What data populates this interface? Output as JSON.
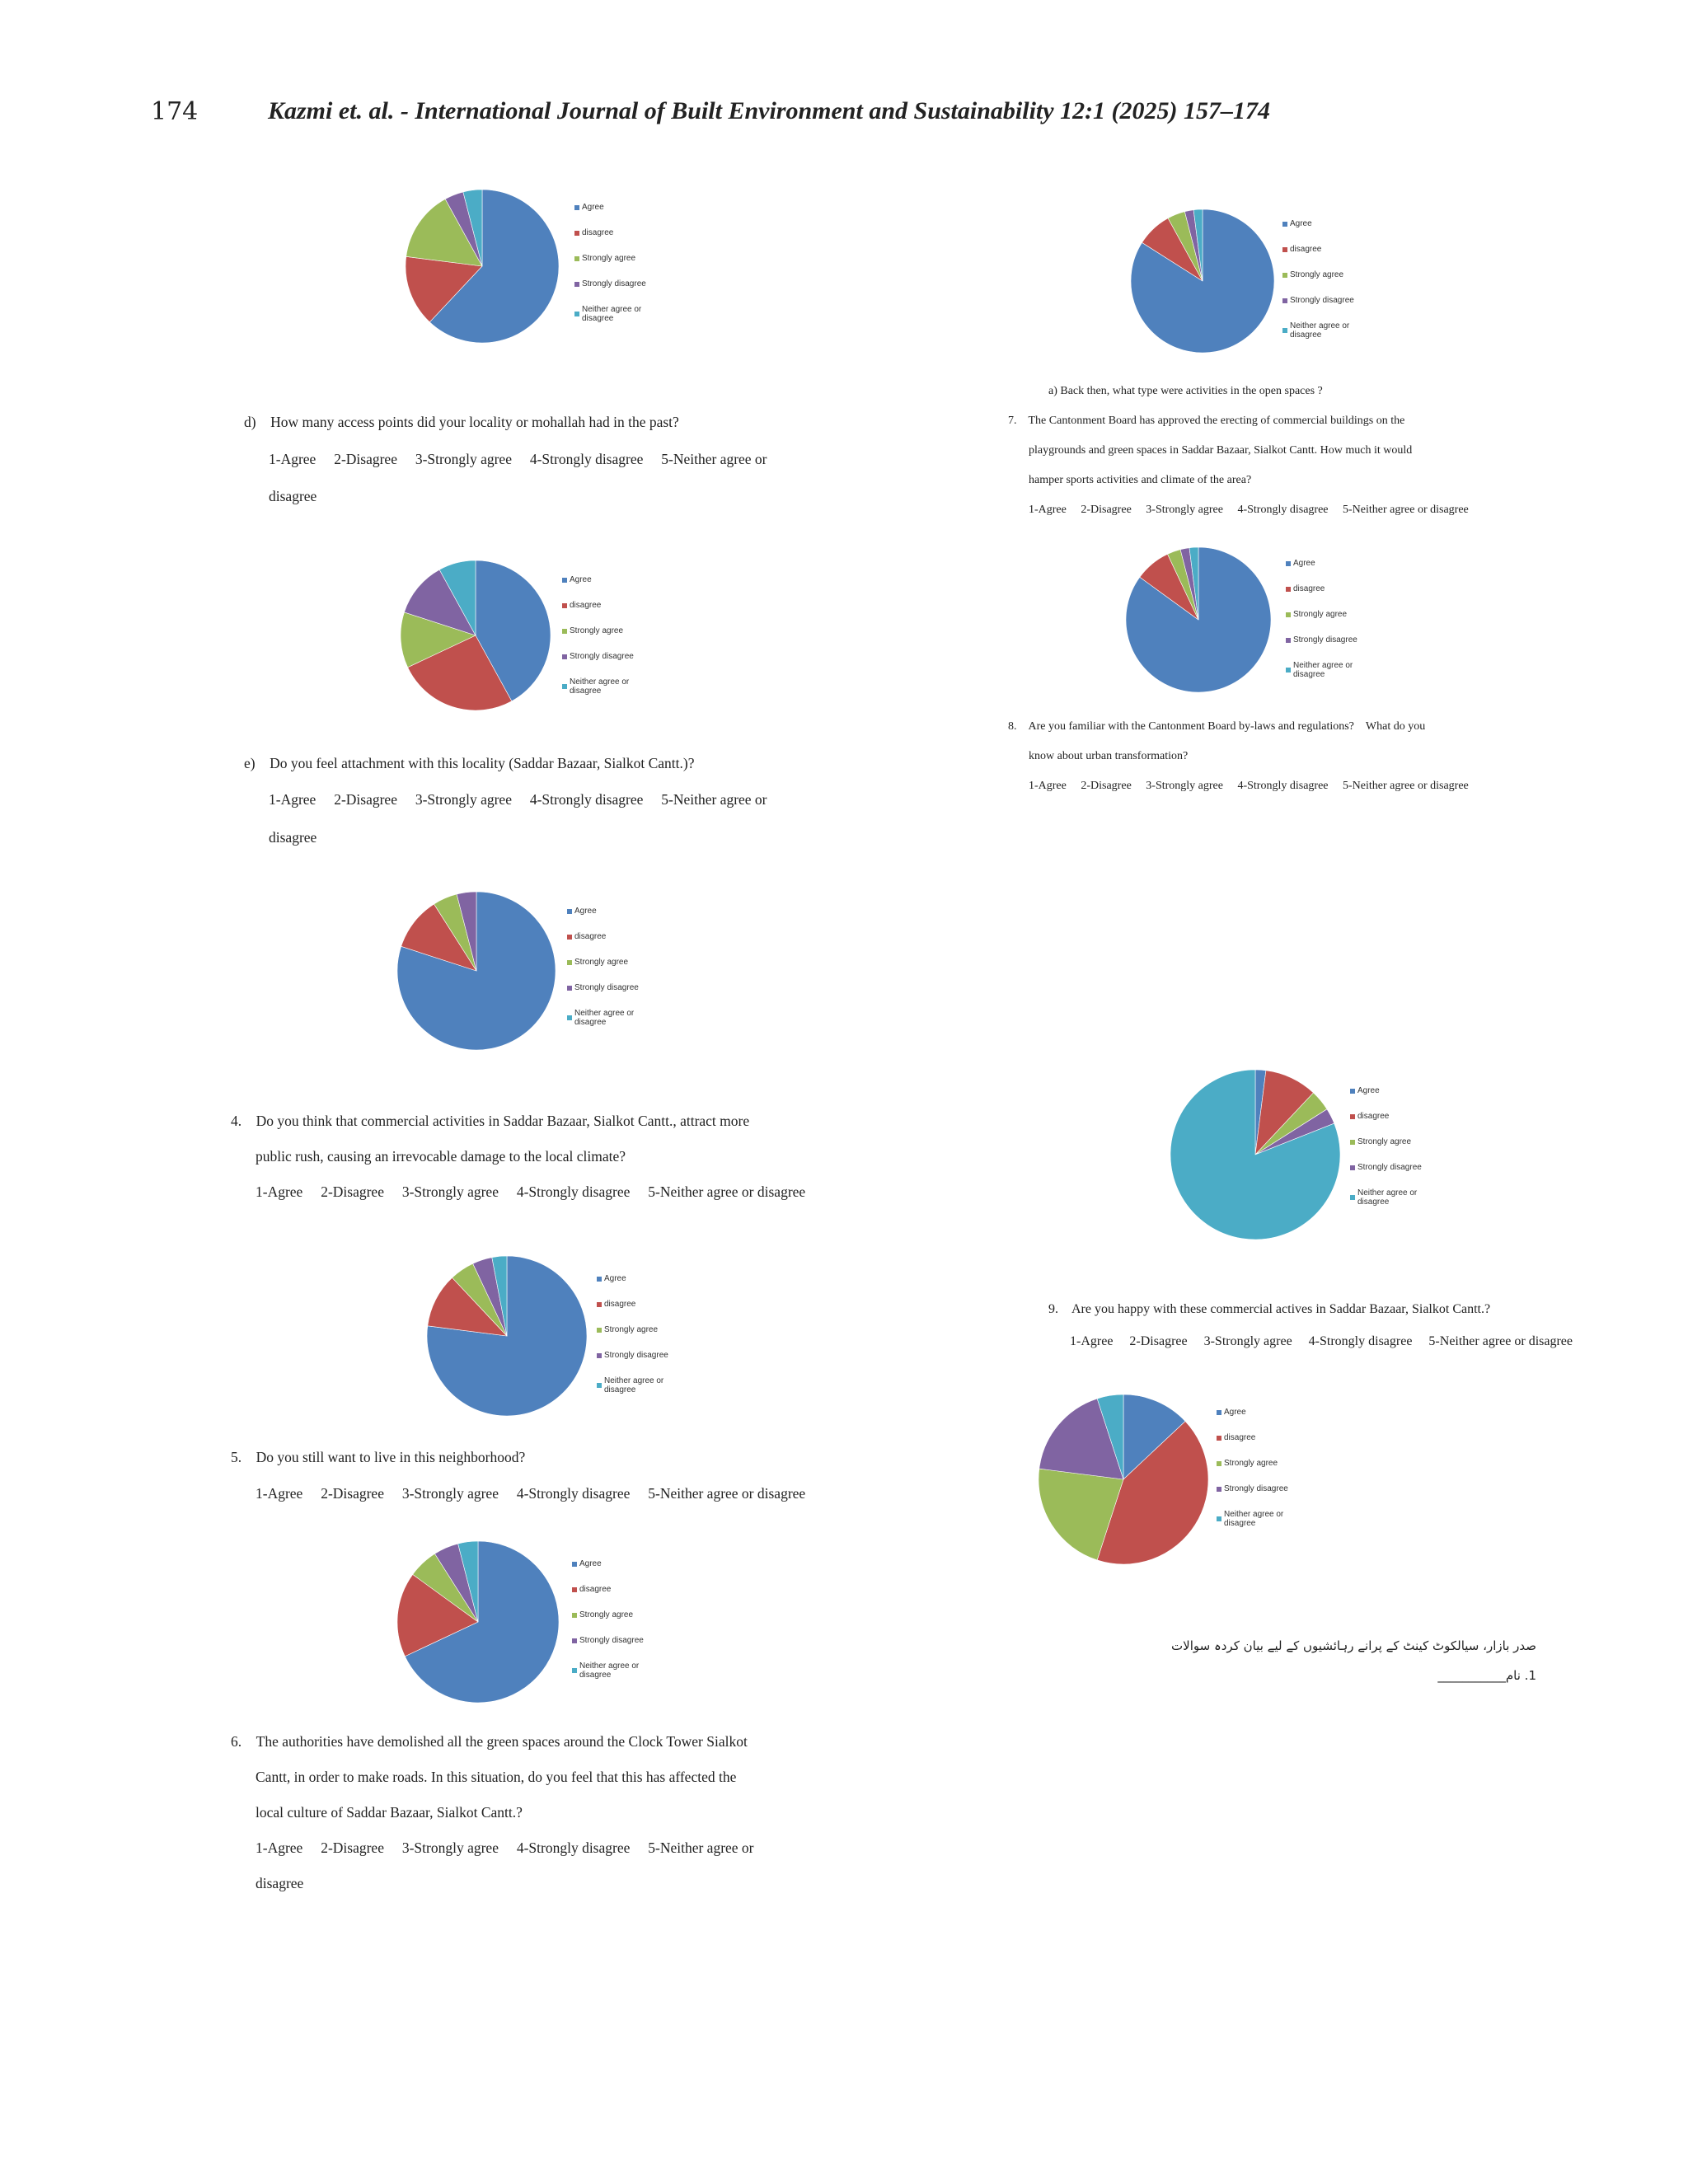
{
  "header": {
    "page_number": "174",
    "running_head": "Kazmi et. al. - International Journal of Built Environment and Sustainability 12:1 (2025) 157–174"
  },
  "colors": [
    "#4f81bd",
    "#c0504d",
    "#9bbb59",
    "#8064a2",
    "#4bacc6"
  ],
  "legend_labels": [
    "Agree",
    "disagree",
    "Strongly agree",
    "Strongly disagree",
    "Neither agree or disagree"
  ],
  "questions": {
    "d": {
      "text": "d) How many access points did your locality or mohallah had in the past?",
      "opt1": "1-Agree  2-Disagree  3-Strongly agree  4-Strongly disagree  5-Neither agree or",
      "opt2": "disagree"
    },
    "e": {
      "text": "e) Do you feel attachment with this locality (Saddar Bazaar, Sialkot Cantt.)?",
      "opt1": "1-Agree  2-Disagree  3-Strongly agree  4-Strongly disagree  5-Neither agree or",
      "opt2": "disagree"
    },
    "q4": {
      "line1": "4. Do you think that commercial activities in Saddar Bazaar, Sialkot Cantt., attract more",
      "line2": "public rush, causing an irrevocable damage to the local climate?",
      "opts": "1-Agree  2-Disagree  3-Strongly agree  4-Strongly disagree  5-Neither agree or disagree"
    },
    "q5": {
      "line1": "5. Do you still want to live in this neighborhood?",
      "opts": "1-Agree  2-Disagree  3-Strongly agree  4-Strongly disagree  5-Neither agree or disagree"
    },
    "q6": {
      "line1": "6. The authorities have demolished all the green spaces around the Clock Tower Sialkot",
      "line2": "Cantt, in order to make roads. In this situation, do you feel that this has affected the",
      "line3": "local culture of Saddar Bazaar, Sialkot Cantt.?",
      "opt1": "1-Agree  2-Disagree  3-Strongly agree  4-Strongly disagree  5-Neither agree or",
      "opt2": "disagree"
    },
    "a": {
      "text": "a) Back then, what type were activities in the open spaces ?"
    },
    "q7": {
      "line1": "7. The Cantonment Board has approved the erecting of commercial buildings on the",
      "line2": "playgrounds and green spaces in Saddar Bazaar, Sialkot Cantt. How much it would",
      "line3": "hamper sports activities and climate of the area?",
      "opts": "1-Agree  2-Disagree  3-Strongly agree  4-Strongly disagree  5-Neither agree or disagree"
    },
    "q8": {
      "line1": "8. Are you familiar with the Cantonment Board by-laws and regulations? What do you",
      "line2": "know about urban transformation?",
      "opts": "1-Agree  2-Disagree  3-Strongly agree  4-Strongly disagree  5-Neither agree or disagree"
    },
    "q9": {
      "line1": "9. Are you happy with these commercial actives in Saddar Bazaar, Sialkot Cantt.?",
      "opts": "1-Agree  2-Disagree  3-Strongly agree  4-Strongly disagree  5-Neither agree or disagree"
    }
  },
  "urdu": {
    "line1": "صدر بازار، سیالکوٹ کینٹ کے پرانے رہائشیوں کے لیے بیان کردہ سوالات",
    "line2": "1. نام___________"
  },
  "chart_data": [
    {
      "type": "pie",
      "id": "c1",
      "categories": [
        "Agree",
        "disagree",
        "Strongly agree",
        "Strongly disagree",
        "Neither agree or disagree"
      ],
      "values": [
        62,
        15,
        15,
        4,
        4
      ]
    },
    {
      "type": "pie",
      "id": "c2",
      "categories": [
        "Agree",
        "disagree",
        "Strongly agree",
        "Strongly disagree",
        "Neither agree or disagree"
      ],
      "values": [
        42,
        26,
        12,
        12,
        8
      ]
    },
    {
      "type": "pie",
      "id": "c3",
      "categories": [
        "Agree",
        "disagree",
        "Strongly agree",
        "Strongly disagree",
        "Neither agree or disagree"
      ],
      "values": [
        80,
        11,
        5,
        4,
        0
      ]
    },
    {
      "type": "pie",
      "id": "c4",
      "categories": [
        "Agree",
        "disagree",
        "Strongly agree",
        "Strongly disagree",
        "Neither agree or disagree"
      ],
      "values": [
        77,
        11,
        5,
        4,
        3
      ]
    },
    {
      "type": "pie",
      "id": "c5",
      "categories": [
        "Agree",
        "disagree",
        "Strongly agree",
        "Strongly disagree",
        "Neither agree or disagree"
      ],
      "values": [
        68,
        17,
        6,
        5,
        4
      ]
    },
    {
      "type": "pie",
      "id": "c6",
      "categories": [
        "Agree",
        "disagree",
        "Strongly agree",
        "Strongly disagree",
        "Neither agree or disagree"
      ],
      "values": [
        84,
        8,
        4,
        2,
        2
      ]
    },
    {
      "type": "pie",
      "id": "c7",
      "categories": [
        "Agree",
        "disagree",
        "Strongly agree",
        "Strongly disagree",
        "Neither agree or disagree"
      ],
      "values": [
        85,
        8,
        3,
        2,
        2
      ]
    },
    {
      "type": "pie",
      "id": "c8",
      "categories": [
        "Agree",
        "disagree",
        "Strongly agree",
        "Strongly disagree",
        "Neither agree or disagree"
      ],
      "values": [
        2,
        10,
        4,
        3,
        81
      ]
    },
    {
      "type": "pie",
      "id": "c9",
      "categories": [
        "Agree",
        "disagree",
        "Strongly agree",
        "Strongly disagree",
        "Neither agree or disagree"
      ],
      "values": [
        13,
        42,
        22,
        18,
        5
      ]
    }
  ]
}
